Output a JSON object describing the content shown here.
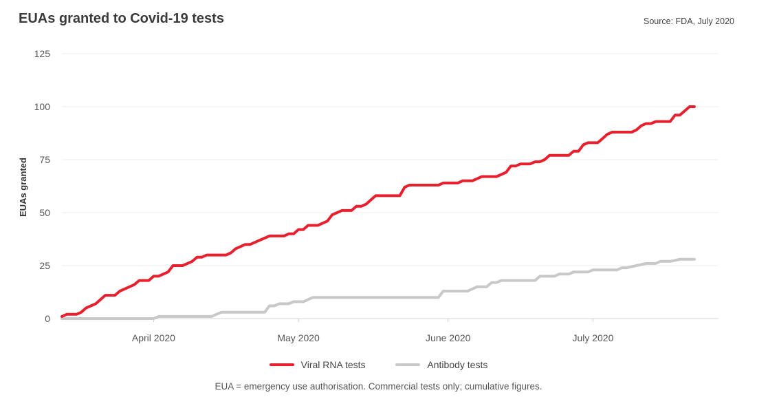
{
  "header": {
    "title": "EUAs granted to Covid-19 tests",
    "source": "Source: FDA, July 2020"
  },
  "footnote": "EUA = emergency use authorisation. Commercial tests only; cumulative figures.",
  "legend": [
    {
      "label": "Viral RNA tests",
      "color": "#e8202e"
    },
    {
      "label": "Antibody tests",
      "color": "#c8c8c8"
    }
  ],
  "chart_data": {
    "type": "line",
    "title": "EUAs granted to Covid-19 tests",
    "ylabel": "EUAs granted",
    "xlabel": "",
    "ylim": [
      0,
      125
    ],
    "yticks": [
      0,
      25,
      50,
      75,
      100,
      125
    ],
    "xlim": [
      "2020-03-13",
      "2020-07-27"
    ],
    "xticks": [
      {
        "date": "2020-04-01",
        "label": "April 2020"
      },
      {
        "date": "2020-05-01",
        "label": "May 2020"
      },
      {
        "date": "2020-06-01",
        "label": "June 2020"
      },
      {
        "date": "2020-07-01",
        "label": "July 2020"
      }
    ],
    "grid": true,
    "series": [
      {
        "name": "Viral RNA tests",
        "color": "#e8202e",
        "points": [
          [
            "2020-03-13",
            1
          ],
          [
            "2020-03-14",
            2
          ],
          [
            "2020-03-16",
            2
          ],
          [
            "2020-03-17",
            3
          ],
          [
            "2020-03-18",
            5
          ],
          [
            "2020-03-19",
            6
          ],
          [
            "2020-03-20",
            7
          ],
          [
            "2020-03-21",
            9
          ],
          [
            "2020-03-22",
            11
          ],
          [
            "2020-03-24",
            11
          ],
          [
            "2020-03-25",
            13
          ],
          [
            "2020-03-26",
            14
          ],
          [
            "2020-03-28",
            16
          ],
          [
            "2020-03-29",
            18
          ],
          [
            "2020-03-31",
            18
          ],
          [
            "2020-04-01",
            20
          ],
          [
            "2020-04-02",
            20
          ],
          [
            "2020-04-03",
            21
          ],
          [
            "2020-04-04",
            22
          ],
          [
            "2020-04-05",
            25
          ],
          [
            "2020-04-07",
            25
          ],
          [
            "2020-04-08",
            26
          ],
          [
            "2020-04-09",
            27
          ],
          [
            "2020-04-10",
            29
          ],
          [
            "2020-04-11",
            29
          ],
          [
            "2020-04-12",
            30
          ],
          [
            "2020-04-16",
            30
          ],
          [
            "2020-04-17",
            31
          ],
          [
            "2020-04-18",
            33
          ],
          [
            "2020-04-19",
            34
          ],
          [
            "2020-04-20",
            35
          ],
          [
            "2020-04-21",
            35
          ],
          [
            "2020-04-22",
            36
          ],
          [
            "2020-04-23",
            37
          ],
          [
            "2020-04-24",
            38
          ],
          [
            "2020-04-25",
            39
          ],
          [
            "2020-04-28",
            39
          ],
          [
            "2020-04-29",
            40
          ],
          [
            "2020-04-30",
            40
          ],
          [
            "2020-05-01",
            42
          ],
          [
            "2020-05-02",
            42
          ],
          [
            "2020-05-03",
            44
          ],
          [
            "2020-05-05",
            44
          ],
          [
            "2020-05-07",
            46
          ],
          [
            "2020-05-08",
            49
          ],
          [
            "2020-05-09",
            50
          ],
          [
            "2020-05-10",
            51
          ],
          [
            "2020-05-12",
            51
          ],
          [
            "2020-05-13",
            53
          ],
          [
            "2020-05-14",
            53
          ],
          [
            "2020-05-15",
            54
          ],
          [
            "2020-05-16",
            56
          ],
          [
            "2020-05-17",
            58
          ],
          [
            "2020-05-22",
            58
          ],
          [
            "2020-05-23",
            62
          ],
          [
            "2020-05-24",
            63
          ],
          [
            "2020-05-30",
            63
          ],
          [
            "2020-05-31",
            64
          ],
          [
            "2020-06-03",
            64
          ],
          [
            "2020-06-04",
            65
          ],
          [
            "2020-06-06",
            65
          ],
          [
            "2020-06-07",
            66
          ],
          [
            "2020-06-08",
            67
          ],
          [
            "2020-06-11",
            67
          ],
          [
            "2020-06-12",
            68
          ],
          [
            "2020-06-13",
            69
          ],
          [
            "2020-06-14",
            72
          ],
          [
            "2020-06-15",
            72
          ],
          [
            "2020-06-16",
            73
          ],
          [
            "2020-06-18",
            73
          ],
          [
            "2020-06-19",
            74
          ],
          [
            "2020-06-20",
            74
          ],
          [
            "2020-06-21",
            75
          ],
          [
            "2020-06-22",
            77
          ],
          [
            "2020-06-26",
            77
          ],
          [
            "2020-06-27",
            79
          ],
          [
            "2020-06-28",
            79
          ],
          [
            "2020-06-29",
            82
          ],
          [
            "2020-06-30",
            83
          ],
          [
            "2020-07-02",
            83
          ],
          [
            "2020-07-03",
            85
          ],
          [
            "2020-07-04",
            87
          ],
          [
            "2020-07-05",
            88
          ],
          [
            "2020-07-09",
            88
          ],
          [
            "2020-07-10",
            89
          ],
          [
            "2020-07-11",
            91
          ],
          [
            "2020-07-12",
            92
          ],
          [
            "2020-07-13",
            92
          ],
          [
            "2020-07-14",
            93
          ],
          [
            "2020-07-17",
            93
          ],
          [
            "2020-07-18",
            96
          ],
          [
            "2020-07-19",
            96
          ],
          [
            "2020-07-20",
            98
          ],
          [
            "2020-07-21",
            100
          ],
          [
            "2020-07-22",
            100
          ]
        ]
      },
      {
        "name": "Antibody tests",
        "color": "#c8c8c8",
        "points": [
          [
            "2020-03-13",
            0
          ],
          [
            "2020-04-01",
            0
          ],
          [
            "2020-04-02",
            1
          ],
          [
            "2020-04-13",
            1
          ],
          [
            "2020-04-14",
            2
          ],
          [
            "2020-04-15",
            3
          ],
          [
            "2020-04-24",
            3
          ],
          [
            "2020-04-25",
            6
          ],
          [
            "2020-04-26",
            6
          ],
          [
            "2020-04-27",
            7
          ],
          [
            "2020-04-29",
            7
          ],
          [
            "2020-04-30",
            8
          ],
          [
            "2020-05-02",
            8
          ],
          [
            "2020-05-03",
            9
          ],
          [
            "2020-05-04",
            10
          ],
          [
            "2020-05-30",
            10
          ],
          [
            "2020-05-31",
            13
          ],
          [
            "2020-06-05",
            13
          ],
          [
            "2020-06-06",
            14
          ],
          [
            "2020-06-07",
            15
          ],
          [
            "2020-06-09",
            15
          ],
          [
            "2020-06-10",
            17
          ],
          [
            "2020-06-11",
            17
          ],
          [
            "2020-06-12",
            18
          ],
          [
            "2020-06-19",
            18
          ],
          [
            "2020-06-20",
            20
          ],
          [
            "2020-06-23",
            20
          ],
          [
            "2020-06-24",
            21
          ],
          [
            "2020-06-26",
            21
          ],
          [
            "2020-06-27",
            22
          ],
          [
            "2020-06-30",
            22
          ],
          [
            "2020-07-01",
            23
          ],
          [
            "2020-07-06",
            23
          ],
          [
            "2020-07-07",
            24
          ],
          [
            "2020-07-08",
            24
          ],
          [
            "2020-07-10",
            25
          ],
          [
            "2020-07-12",
            26
          ],
          [
            "2020-07-14",
            26
          ],
          [
            "2020-07-15",
            27
          ],
          [
            "2020-07-17",
            27
          ],
          [
            "2020-07-19",
            28
          ],
          [
            "2020-07-22",
            28
          ]
        ]
      }
    ]
  }
}
